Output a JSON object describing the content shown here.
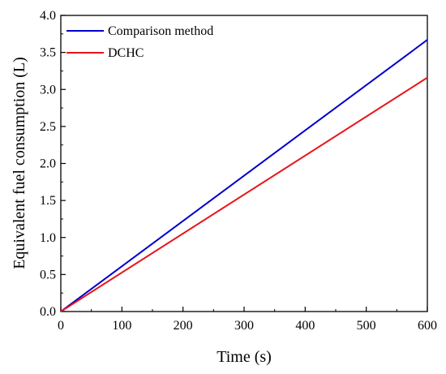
{
  "chart_data": {
    "type": "line",
    "title": "",
    "xlabel": "Time (s)",
    "ylabel": "Equivalent fuel consumption (L)",
    "xlim": [
      0,
      600
    ],
    "ylim": [
      0,
      4.0
    ],
    "x_ticks": [
      0,
      100,
      200,
      300,
      400,
      500,
      600
    ],
    "x_tick_labels": [
      "0",
      "100",
      "200",
      "300",
      "400",
      "500",
      "600"
    ],
    "y_ticks": [
      0,
      0.5,
      1.0,
      1.5,
      2.0,
      2.5,
      3.0,
      3.5,
      4.0
    ],
    "y_tick_labels": [
      "0.0",
      "0.5",
      "1.0",
      "1.5",
      "2.0",
      "2.5",
      "3.0",
      "3.5",
      "4.0"
    ],
    "grid": false,
    "legend_position": "top-left",
    "series": [
      {
        "name": "Comparison method",
        "color": "#0000cc",
        "x": [
          0,
          600
        ],
        "y": [
          0,
          3.67
        ]
      },
      {
        "name": "DCHC",
        "color": "#e8141b",
        "x": [
          0,
          600
        ],
        "y": [
          0,
          3.16
        ]
      }
    ]
  }
}
